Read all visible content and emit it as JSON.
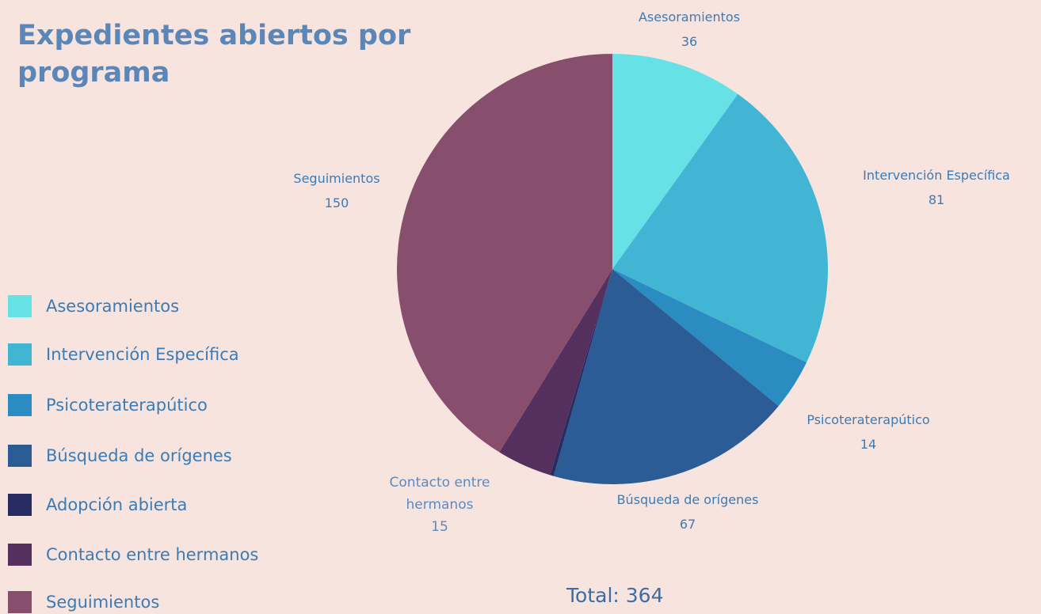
{
  "chart_data": {
    "type": "pie",
    "title": "Expedientes abiertos por programa",
    "categories": [
      "Asesoramientos",
      "Intervención Específica",
      "Psicoteraterapútico",
      "Búsqueda de orígenes",
      "Adopción abierta",
      "Contacto entre hermanos",
      "Seguimientos"
    ],
    "values": [
      36,
      81,
      14,
      67,
      1,
      15,
      150
    ],
    "colors": [
      "#66e2e6",
      "#41b5d3",
      "#2a8cc0",
      "#2b5c95",
      "#262c62",
      "#552f5e",
      "#874f6d"
    ],
    "total_label": "Total: 364"
  }
}
